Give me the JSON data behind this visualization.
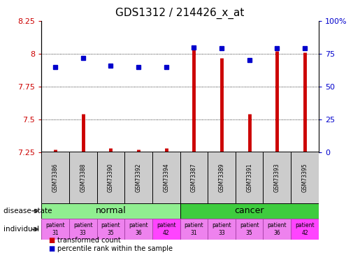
{
  "title": "GDS1312 / 214426_x_at",
  "samples": [
    "GSM73386",
    "GSM73388",
    "GSM73390",
    "GSM73392",
    "GSM73394",
    "GSM73387",
    "GSM73389",
    "GSM73391",
    "GSM73393",
    "GSM73395"
  ],
  "transformed_counts": [
    7.27,
    7.54,
    7.28,
    7.27,
    7.28,
    8.03,
    7.97,
    7.54,
    8.02,
    8.01
  ],
  "percentile_ranks": [
    65,
    72,
    66,
    65,
    65,
    80,
    79,
    70,
    79,
    79
  ],
  "ylim_left": [
    7.25,
    8.25
  ],
  "ylim_right": [
    0,
    100
  ],
  "yticks_left": [
    7.25,
    7.5,
    7.75,
    8.0,
    8.25
  ],
  "yticks_right": [
    0,
    25,
    50,
    75,
    100
  ],
  "ytick_labels_left": [
    "7.25",
    "7.5",
    "7.75",
    "8",
    "8.25"
  ],
  "ytick_labels_right": [
    "0",
    "25",
    "50",
    "75",
    "100%"
  ],
  "disease_groups": [
    {
      "label": "normal",
      "start": 0,
      "end": 4,
      "color": "#90EE90"
    },
    {
      "label": "cancer",
      "start": 5,
      "end": 9,
      "color": "#3ECC3E"
    }
  ],
  "individuals": [
    "patient\n31",
    "patient\n33",
    "patient\n35",
    "patient\n36",
    "patient\n42",
    "patient\n31",
    "patient\n33",
    "patient\n35",
    "patient\n36",
    "patient\n42"
  ],
  "individual_colors": [
    "#EE82EE",
    "#EE82EE",
    "#EE82EE",
    "#EE82EE",
    "#FF44FF",
    "#EE82EE",
    "#EE82EE",
    "#EE82EE",
    "#EE82EE",
    "#FF44FF"
  ],
  "bar_color": "#CC0000",
  "point_color": "#0000CC",
  "axis_color_left": "#CC0000",
  "axis_color_right": "#0000CC",
  "sample_box_color": "#CCCCCC",
  "legend_items": [
    {
      "label": "transformed count",
      "color": "#CC0000"
    },
    {
      "label": "percentile rank within the sample",
      "color": "#0000CC"
    }
  ],
  "label_fontsize": 8,
  "title_fontsize": 11
}
